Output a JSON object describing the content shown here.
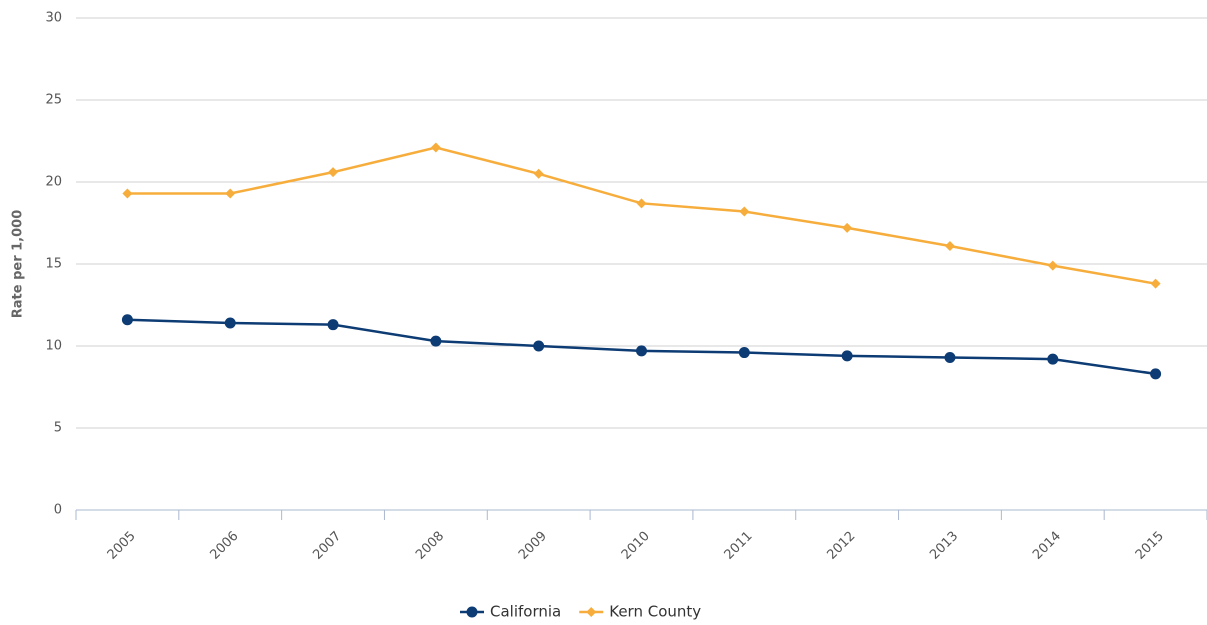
{
  "chart_data": {
    "type": "line",
    "y_label": "Rate per 1,000",
    "categories": [
      "2005",
      "2006",
      "2007",
      "2008",
      "2009",
      "2010",
      "2011",
      "2012",
      "2013",
      "2014",
      "2015"
    ],
    "series": [
      {
        "name": "California",
        "color": "#0d3b73",
        "marker": "circle",
        "values": [
          11.6,
          11.4,
          11.3,
          10.3,
          10.0,
          9.7,
          9.6,
          9.4,
          9.3,
          9.2,
          8.3
        ]
      },
      {
        "name": "Kern County",
        "color": "#f7ad3c",
        "marker": "diamond",
        "values": [
          19.3,
          19.3,
          20.6,
          22.1,
          20.5,
          18.7,
          18.2,
          17.2,
          16.1,
          14.9,
          13.8
        ]
      }
    ],
    "ylim": [
      0,
      30
    ],
    "yticks": [
      0,
      5,
      10,
      15,
      20,
      25,
      30
    ],
    "grid": true,
    "legend": "bottom"
  }
}
